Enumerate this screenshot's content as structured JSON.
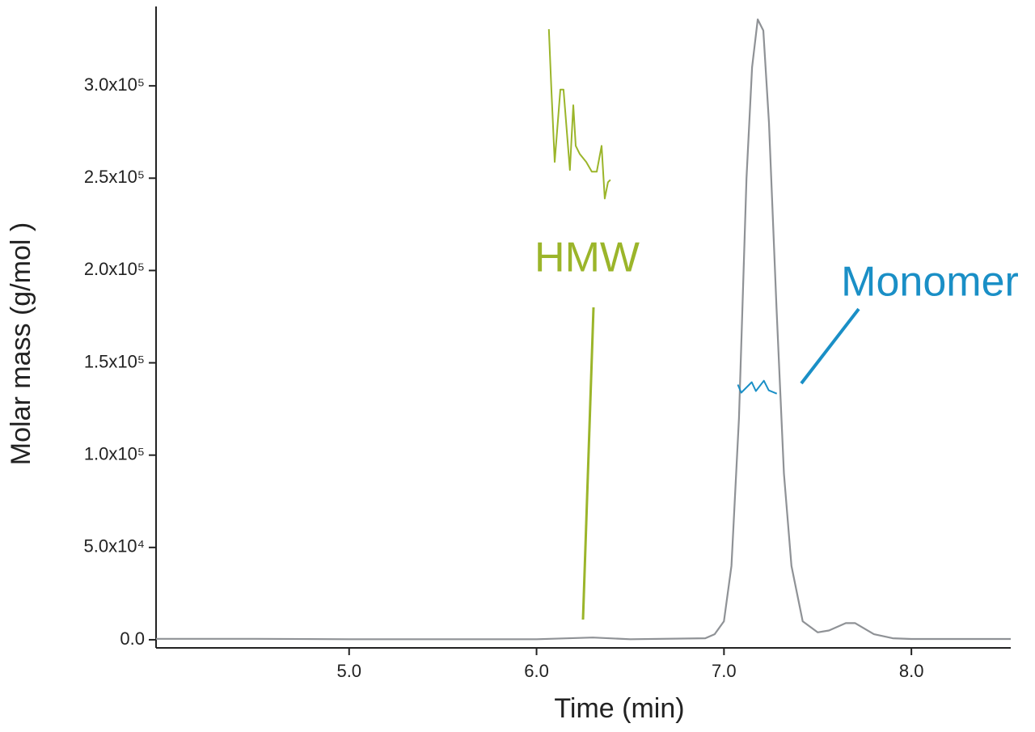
{
  "chart_data": {
    "type": "line",
    "xlabel": "Time (min)",
    "ylabel": "Molar mass (g/mol )",
    "xlim": [
      3.97,
      8.53
    ],
    "ylim": [
      -4400,
      343000
    ],
    "xticks": [
      {
        "value": 5,
        "label": "5.0"
      },
      {
        "value": 6,
        "label": "6.0"
      },
      {
        "value": 7,
        "label": "7.0"
      },
      {
        "value": 8,
        "label": "8.0"
      }
    ],
    "yticks": [
      {
        "value": 0,
        "label": "0.0"
      },
      {
        "value": 50000,
        "label": "5.0x10⁴"
      },
      {
        "value": 100000,
        "label": "1.0x10⁵"
      },
      {
        "value": 150000,
        "label": "1.5x10⁵"
      },
      {
        "value": 200000,
        "label": "2.0x10⁵"
      },
      {
        "value": 250000,
        "label": "2.5x10⁵"
      },
      {
        "value": 300000,
        "label": "3.0x10⁵"
      }
    ],
    "series": [
      {
        "color": "#8f9296",
        "x": [
          3.97,
          4.5,
          5.0,
          6.0,
          6.3,
          6.5,
          6.9,
          6.95,
          7.0,
          7.04,
          7.08,
          7.12,
          7.15,
          7.18,
          7.21,
          7.24,
          7.28,
          7.32,
          7.36,
          7.42,
          7.5,
          7.56,
          7.65,
          7.7,
          7.8,
          7.9,
          8.0,
          8.53
        ],
        "values": [
          500,
          500,
          300,
          300,
          1200,
          300,
          800,
          3000,
          10000,
          40000,
          120000,
          250000,
          310000,
          336000,
          330000,
          280000,
          180000,
          90000,
          40000,
          10000,
          4000,
          5000,
          9000,
          9000,
          3000,
          800,
          400,
          400
        ]
      },
      {
        "name": "HMW",
        "color": "#9bb52a",
        "x": [
          6.066,
          6.079,
          6.097,
          6.127,
          6.144,
          6.178,
          6.196,
          6.209,
          6.23,
          6.265,
          6.295,
          6.321,
          6.347,
          6.364,
          6.381,
          6.394
        ],
        "values": [
          330700,
          298000,
          258800,
          298000,
          298000,
          254400,
          289500,
          267500,
          263200,
          258800,
          253500,
          253500,
          267500,
          239000,
          247800,
          249100
        ]
      },
      {
        "name": "Monomer",
        "color": "#1a8fc6",
        "x": [
          7.074,
          7.092,
          7.148,
          7.17,
          7.213,
          7.239,
          7.282
        ],
        "values": [
          138200,
          133800,
          139500,
          134700,
          140300,
          135100,
          133300
        ]
      }
    ]
  }
}
